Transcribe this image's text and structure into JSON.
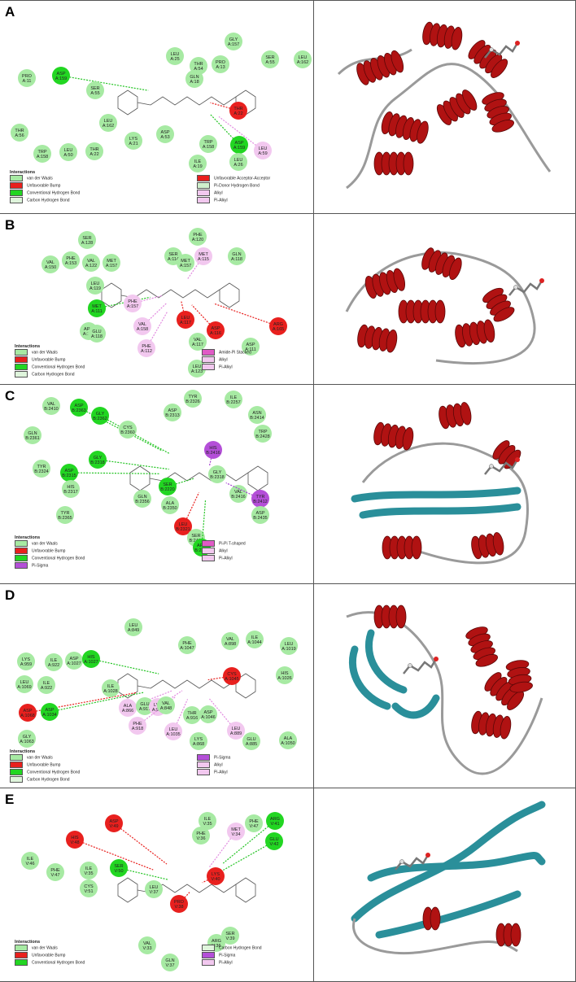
{
  "colors": {
    "vdw": "#a7eaa3",
    "bump": "#e8201e",
    "hbond": "#22d622",
    "chbond": "#dff5dc",
    "acceptor": "#e8201e",
    "pi_donor": "#cff0cc",
    "alkyl": "#f2c8ef",
    "pi_sigma": "#b44fd8",
    "pi_t": "#e05ac6",
    "helix": "#b01212",
    "strand": "#2a8f9a",
    "coil": "#9a9a9a",
    "turn": "#2aa02a"
  },
  "panels": [
    {
      "letter": "A",
      "legend_title": "Interactions",
      "legend_left": [
        "van der Waals",
        "Unfavorable Bump",
        "Conventional Hydrogen Bond",
        "Carbon Hydrogen Bond"
      ],
      "legend_right": [
        "Unfavorable Acceptor-Acceptor",
        "Pi-Donor Hydrogen Bond",
        "Alkyl",
        "Pi-Alkyl"
      ],
      "residues": [
        {
          "name": "PRO A:11",
          "type": "vdw"
        },
        {
          "name": "ASP A:159",
          "type": "hbond"
        },
        {
          "name": "SER A:55",
          "type": "vdw"
        },
        {
          "name": "LEU A:162",
          "type": "vdw"
        },
        {
          "name": "THR A:56",
          "type": "vdw"
        },
        {
          "name": "TRP A:158",
          "type": "vdw"
        },
        {
          "name": "LEU A:50",
          "type": "vdw"
        },
        {
          "name": "THR A:22",
          "type": "vdw"
        },
        {
          "name": "LYS A:21",
          "type": "vdw"
        },
        {
          "name": "LEU A:25",
          "type": "vdw"
        },
        {
          "name": "THR A:54",
          "type": "vdw"
        },
        {
          "name": "GLN A:18",
          "type": "vdw"
        },
        {
          "name": "GLY A:157",
          "type": "vdw"
        },
        {
          "name": "PRO A:13",
          "type": "vdw"
        },
        {
          "name": "SER A:55",
          "type": "vdw"
        },
        {
          "name": "LEU A:162",
          "type": "vdw"
        },
        {
          "name": "ASP A:53",
          "type": "vdw"
        },
        {
          "name": "THR A:22",
          "type": "bump"
        },
        {
          "name": "TRP A:158",
          "type": "vdw"
        },
        {
          "name": "ASP A:159",
          "type": "hbond"
        },
        {
          "name": "ILE A:19",
          "type": "vdw"
        },
        {
          "name": "LEU A:26",
          "type": "vdw"
        },
        {
          "name": "LEU A:59",
          "type": "alkyl"
        }
      ]
    },
    {
      "letter": "B",
      "legend_title": "Interactions",
      "legend_left": [
        "van der Waals",
        "Unfavorable Bump",
        "Conventional Hydrogen Bond",
        "Carbon Hydrogen Bond"
      ],
      "legend_right": [
        "Amide-Pi Stacked",
        "Alkyl",
        "Pi-Alkyl"
      ],
      "residues": [
        {
          "name": "SER A:128",
          "type": "vdw"
        },
        {
          "name": "MET A:157",
          "type": "vdw"
        },
        {
          "name": "PHE A:153",
          "type": "vdw"
        },
        {
          "name": "VAL A:122",
          "type": "vdw"
        },
        {
          "name": "VAL A:150",
          "type": "vdw"
        },
        {
          "name": "LEU A:119",
          "type": "vdw"
        },
        {
          "name": "MET A:111",
          "type": "hbond"
        },
        {
          "name": "PHE A:157",
          "type": "alkyl"
        },
        {
          "name": "ARG A:120",
          "type": "vdw"
        },
        {
          "name": "GLU A:118",
          "type": "vdw"
        },
        {
          "name": "VAL A:158",
          "type": "alkyl"
        },
        {
          "name": "PHE A:120",
          "type": "vdw"
        },
        {
          "name": "SER A:114",
          "type": "vdw"
        },
        {
          "name": "MET A:157",
          "type": "vdw"
        },
        {
          "name": "MET A:115",
          "type": "alkyl"
        },
        {
          "name": "GLN A:118",
          "type": "vdw"
        },
        {
          "name": "PHE A:112",
          "type": "alkyl"
        },
        {
          "name": "LEU A:117",
          "type": "bump"
        },
        {
          "name": "VAL A:117",
          "type": "vdw"
        },
        {
          "name": "ASP A:116",
          "type": "bump"
        },
        {
          "name": "LEU A:123",
          "type": "vdw"
        },
        {
          "name": "ASP A:111",
          "type": "vdw"
        },
        {
          "name": "ARG A:165",
          "type": "bump"
        }
      ]
    },
    {
      "letter": "C",
      "legend_title": "Interactions",
      "legend_left": [
        "van der Waals",
        "Unfavorable Bump",
        "Conventional Hydrogen Bond",
        "Pi-Sigma"
      ],
      "legend_right": [
        "Pi-Pi T-shaped",
        "Alkyl",
        "Pi-Alkyl"
      ],
      "residues": [
        {
          "name": "VAL B:2410",
          "type": "vdw"
        },
        {
          "name": "ASP B:2363",
          "type": "hbond"
        },
        {
          "name": "GLY B:2362",
          "type": "hbond"
        },
        {
          "name": "CYS B:2360",
          "type": "vdw"
        },
        {
          "name": "GLN B:2361",
          "type": "vdw"
        },
        {
          "name": "GLY B:2318",
          "type": "hbond"
        },
        {
          "name": "TYR B:2324",
          "type": "vdw"
        },
        {
          "name": "ASP B:2315",
          "type": "hbond"
        },
        {
          "name": "HIS B:2317",
          "type": "vdw"
        },
        {
          "name": "TYR B:2326",
          "type": "vdw"
        },
        {
          "name": "ILE B:2257",
          "type": "vdw"
        },
        {
          "name": "ASP B:2313",
          "type": "vdw"
        },
        {
          "name": "ASN B:2414",
          "type": "vdw"
        },
        {
          "name": "TRP B:2428",
          "type": "vdw"
        },
        {
          "name": "HIS B:2416",
          "type": "pi_sigma"
        },
        {
          "name": "GLY B:2318",
          "type": "vdw"
        },
        {
          "name": "VAL B:2416",
          "type": "vdw"
        },
        {
          "name": "SER B:2220",
          "type": "hbond"
        },
        {
          "name": "ALA B:2350",
          "type": "vdw"
        },
        {
          "name": "GLN B:2356",
          "type": "vdw"
        },
        {
          "name": "LEU B:2321",
          "type": "bump"
        },
        {
          "name": "SER B:2411",
          "type": "vdw"
        },
        {
          "name": "ARG B:2398",
          "type": "hbond"
        },
        {
          "name": "TYR B:2412",
          "type": "pi_sigma"
        },
        {
          "name": "ASP B:2435",
          "type": "vdw"
        },
        {
          "name": "TYR B:2365",
          "type": "vdw"
        }
      ]
    },
    {
      "letter": "D",
      "legend_title": "Interactions",
      "legend_left": [
        "van der Waals",
        "Unfavorable Bump",
        "Conventional Hydrogen Bond",
        "Carbon Hydrogen Bond"
      ],
      "legend_right": [
        "Pi-Sigma",
        "Alkyl",
        "Pi-Alkyl"
      ],
      "residues": [
        {
          "name": "LYS A:959",
          "type": "vdw"
        },
        {
          "name": "ILE A:922",
          "type": "vdw"
        },
        {
          "name": "ASP A:1027",
          "type": "vdw"
        },
        {
          "name": "LEU A:1069",
          "type": "vdw"
        },
        {
          "name": "ILE A:922",
          "type": "vdw"
        },
        {
          "name": "HIS A:1027",
          "type": "hbond"
        },
        {
          "name": "ASP A:1068",
          "type": "bump"
        },
        {
          "name": "ASP A:1034",
          "type": "hbond"
        },
        {
          "name": "GLY A:1063",
          "type": "vdw"
        },
        {
          "name": "LEU A:849",
          "type": "vdw"
        },
        {
          "name": "ILE A:1028",
          "type": "vdw"
        },
        {
          "name": "ALA A:866",
          "type": "alkyl"
        },
        {
          "name": "GLU A:917",
          "type": "vdw"
        },
        {
          "name": "LYS A:919",
          "type": "alkyl"
        },
        {
          "name": "PHE A:918",
          "type": "alkyl"
        },
        {
          "name": "VAL A:848",
          "type": "vdw"
        },
        {
          "name": "LEU A:1035",
          "type": "alkyl"
        },
        {
          "name": "PHE A:1047",
          "type": "vdw"
        },
        {
          "name": "VAL A:898",
          "type": "vdw"
        },
        {
          "name": "ILE A:1044",
          "type": "vdw"
        },
        {
          "name": "CYS A:1045",
          "type": "bump"
        },
        {
          "name": "THR A:916",
          "type": "vdw"
        },
        {
          "name": "ASP A:1046",
          "type": "vdw"
        },
        {
          "name": "LYS A:868",
          "type": "vdw"
        },
        {
          "name": "LEU A:889",
          "type": "alkyl"
        },
        {
          "name": "GLU A:885",
          "type": "vdw"
        },
        {
          "name": "LEU A:1019",
          "type": "vdw"
        },
        {
          "name": "HIS A:1026",
          "type": "vdw"
        },
        {
          "name": "ALA A:1050",
          "type": "vdw"
        }
      ]
    },
    {
      "letter": "E",
      "legend_title": "Interactions",
      "legend_left": [
        "van der Waals",
        "Unfavorable Bump",
        "Conventional Hydrogen Bond"
      ],
      "legend_right": [
        "Carbon Hydrogen Bond",
        "Pi-Sigma",
        "Pi-Alkyl"
      ],
      "residues": [
        {
          "name": "ILE V:46",
          "type": "vdw"
        },
        {
          "name": "PHE V:47",
          "type": "vdw"
        },
        {
          "name": "ILE V:35",
          "type": "vdw"
        },
        {
          "name": "CYS V:51",
          "type": "vdw"
        },
        {
          "name": "HIS V:48",
          "type": "bump"
        },
        {
          "name": "ASP V:49",
          "type": "bump"
        },
        {
          "name": "SER V:50",
          "type": "hbond"
        },
        {
          "name": "LEU V:37",
          "type": "vdw"
        },
        {
          "name": "VAL V:33",
          "type": "vdw"
        },
        {
          "name": "GLN V:37",
          "type": "vdw"
        },
        {
          "name": "ILE V:35",
          "type": "vdw"
        },
        {
          "name": "PHE V:36",
          "type": "vdw"
        },
        {
          "name": "MET V:34",
          "type": "alkyl"
        },
        {
          "name": "PHE V:47",
          "type": "vdw"
        },
        {
          "name": "ARG V:41",
          "type": "hbond"
        },
        {
          "name": "GLU V:42",
          "type": "hbond"
        },
        {
          "name": "SER V:39",
          "type": "vdw"
        },
        {
          "name": "ARG V:36",
          "type": "vdw"
        },
        {
          "name": "PRO V:38",
          "type": "bump"
        },
        {
          "name": "LYS V:40",
          "type": "bump"
        }
      ]
    }
  ]
}
